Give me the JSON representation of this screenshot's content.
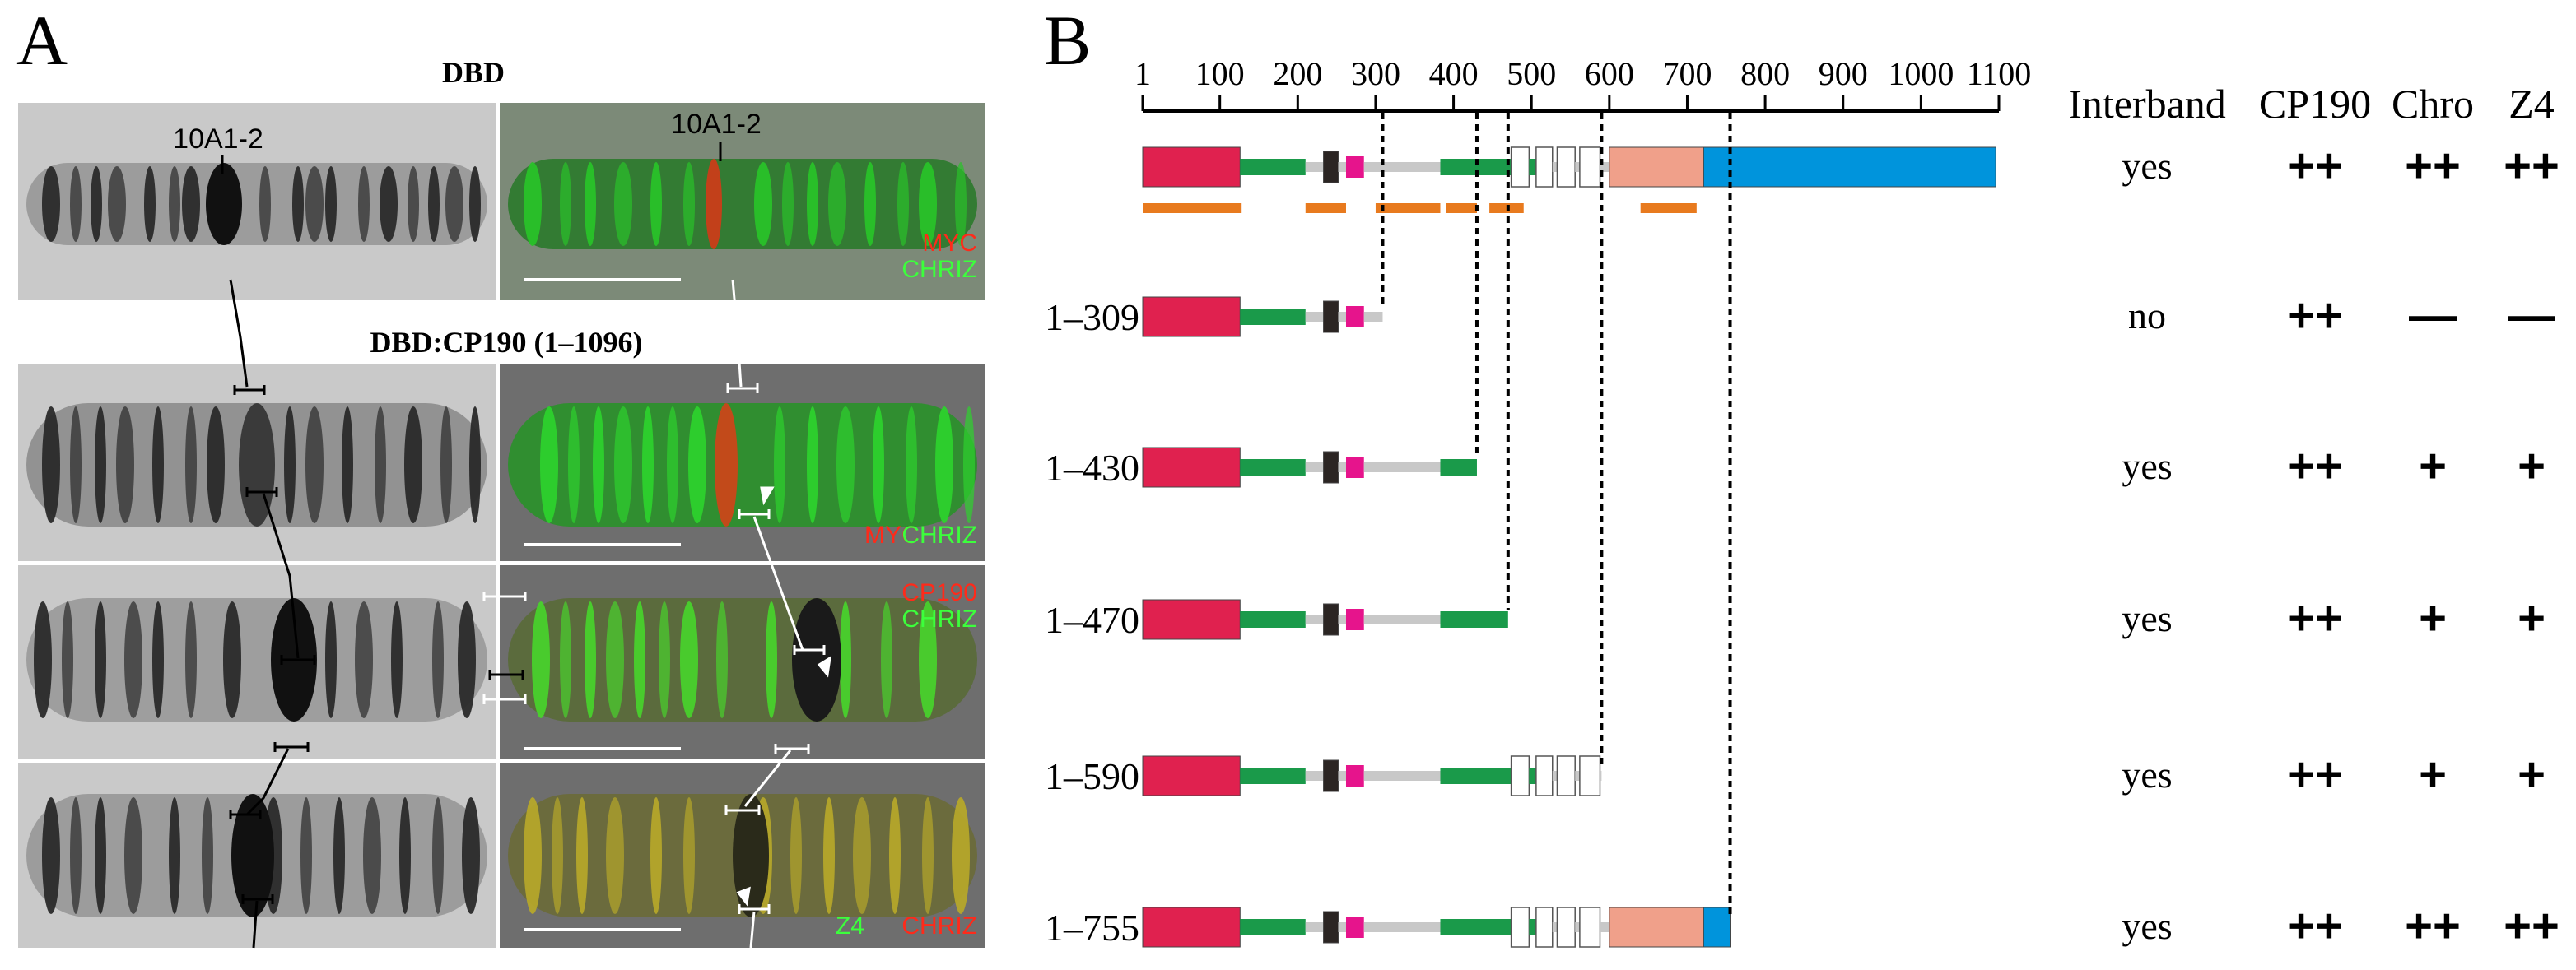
{
  "panel_a": {
    "letter": "A",
    "title_top": "DBD",
    "title_mid": "DBD:CP190 (1–1096)",
    "band_label_left": "10A1-2",
    "band_label_right": "10A1-2",
    "row1_labels": [
      "MYC",
      "CHRIZ"
    ],
    "row2_labels": [
      "MYC",
      "CHRIZ"
    ],
    "row3_labels": [
      "CP190",
      "CHRIZ"
    ],
    "row4_labels": [
      "Z4",
      "CHRIZ"
    ],
    "colors": {
      "red": "#ff2a1a",
      "green": "#3cff3c"
    }
  },
  "panel_b": {
    "letter": "B",
    "axis_ticks": [
      "1",
      "100",
      "200",
      "300",
      "400",
      "500",
      "600",
      "700",
      "800",
      "900",
      "1000",
      "1100"
    ],
    "axis_values": [
      1,
      100,
      200,
      300,
      400,
      500,
      600,
      700,
      800,
      900,
      1000,
      1100
    ],
    "headers": {
      "interband": "Interband",
      "cp190": "CP190",
      "chro": "Chro",
      "z4": "Z4"
    },
    "constructs": [
      {
        "label": "",
        "end": 1096,
        "interband": "yes",
        "cp190": "++",
        "chro": "++",
        "z4": "++"
      },
      {
        "label": "1–309",
        "end": 309,
        "interband": "no",
        "cp190": "++",
        "chro": "—",
        "z4": "—"
      },
      {
        "label": "1–430",
        "end": 430,
        "interband": "yes",
        "cp190": "++",
        "chro": "+",
        "z4": "+"
      },
      {
        "label": "1–470",
        "end": 470,
        "interband": "yes",
        "cp190": "++",
        "chro": "+",
        "z4": "+"
      },
      {
        "label": "1–590",
        "end": 590,
        "interband": "yes",
        "cp190": "++",
        "chro": "+",
        "z4": "+"
      },
      {
        "label": "1–755",
        "end": 755,
        "interband": "yes",
        "cp190": "++",
        "chro": "++",
        "z4": "++"
      }
    ],
    "domains": [
      {
        "name": "BTB",
        "start": 1,
        "end": 126,
        "color": "#e0214f",
        "style": "tall"
      },
      {
        "name": "linker-green-1",
        "start": 126,
        "end": 210,
        "color": "#1a9a4a",
        "style": "mid"
      },
      {
        "name": "linker-gray-1",
        "start": 210,
        "end": 233,
        "color": "#c8c8c8",
        "style": "thin"
      },
      {
        "name": "black-box",
        "start": 233,
        "end": 252,
        "color": "#2b2523",
        "style": "tall2"
      },
      {
        "name": "linker-gray-2",
        "start": 252,
        "end": 262,
        "color": "#c8c8c8",
        "style": "thin"
      },
      {
        "name": "magenta-box",
        "start": 262,
        "end": 285,
        "color": "#e6148c",
        "style": "midtall"
      },
      {
        "name": "linker-gray-3",
        "start": 285,
        "end": 383,
        "color": "#c8c8c8",
        "style": "thin"
      },
      {
        "name": "linker-green-2",
        "start": 383,
        "end": 474,
        "color": "#1a9a4a",
        "style": "mid"
      },
      {
        "name": "zf1",
        "start": 474,
        "end": 497,
        "color": "#ffffff",
        "style": "zf"
      },
      {
        "name": "gap-green",
        "start": 497,
        "end": 506,
        "color": "#1a9a4a",
        "style": "mid"
      },
      {
        "name": "zf2",
        "start": 506,
        "end": 527,
        "color": "#ffffff",
        "style": "zf"
      },
      {
        "name": "gap-gray-a",
        "start": 527,
        "end": 533,
        "color": "#c8c8c8",
        "style": "thin"
      },
      {
        "name": "zf3",
        "start": 533,
        "end": 556,
        "color": "#ffffff",
        "style": "zf"
      },
      {
        "name": "gap-gray-b",
        "start": 556,
        "end": 562,
        "color": "#c8c8c8",
        "style": "thin"
      },
      {
        "name": "zf4",
        "start": 562,
        "end": 588,
        "color": "#ffffff",
        "style": "zf"
      },
      {
        "name": "gap-gray-c",
        "start": 588,
        "end": 600,
        "color": "#c8c8c8",
        "style": "thin"
      },
      {
        "name": "salmon-domain",
        "start": 600,
        "end": 721,
        "color": "#f0a08a",
        "style": "tall"
      },
      {
        "name": "blue-domain",
        "start": 721,
        "end": 1096,
        "color": "#0094dc",
        "style": "tall"
      }
    ],
    "orange_bars": [
      {
        "start": 1,
        "end": 128
      },
      {
        "start": 210,
        "end": 262
      },
      {
        "start": 300,
        "end": 383
      },
      {
        "start": 390,
        "end": 430
      },
      {
        "start": 446,
        "end": 490
      },
      {
        "start": 640,
        "end": 712
      }
    ],
    "orange_color": "#e87a1e",
    "dash_positions": [
      309,
      430,
      470,
      590,
      755
    ]
  }
}
